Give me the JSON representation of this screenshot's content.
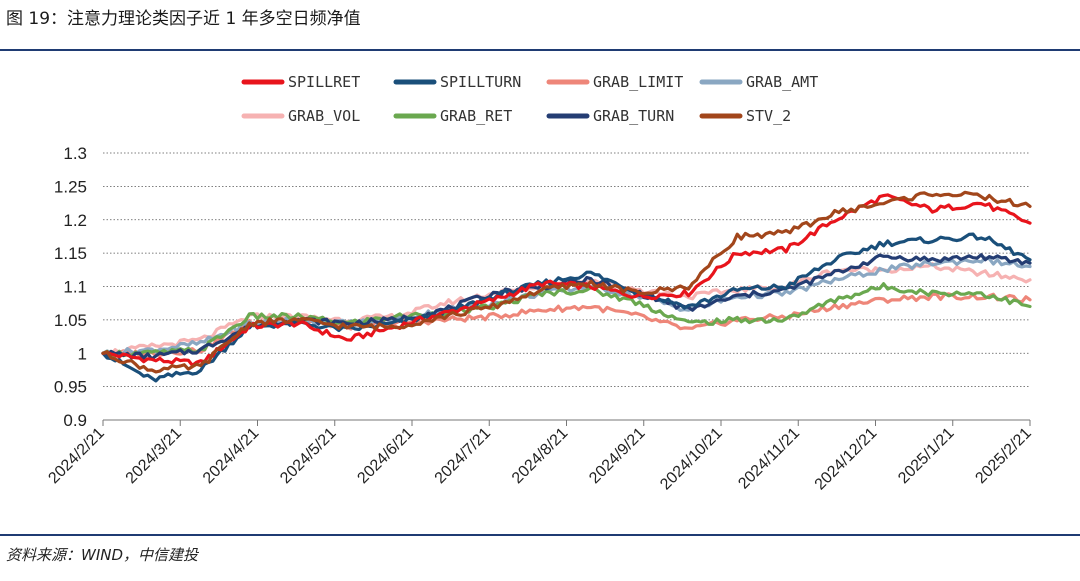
{
  "figure": {
    "title": "图 19：注意力理论类因子近 1 年多空日频净值",
    "source": "资料来源：WIND，中信建投"
  },
  "chart_data": {
    "type": "line",
    "ylim": [
      0.9,
      1.3
    ],
    "yticks": [
      "0.9",
      "0.95",
      "1",
      "1.05",
      "1.1",
      "1.15",
      "1.2",
      "1.25",
      "1.3"
    ],
    "grid": "horizontal-dotted",
    "legend_position": "top",
    "x_ticks": [
      "2024/2/21",
      "2024/3/21",
      "2024/4/21",
      "2024/5/21",
      "2024/6/21",
      "2024/7/21",
      "2024/8/21",
      "2024/9/21",
      "2024/10/21",
      "2024/11/21",
      "2024/12/21",
      "2025/1/21",
      "2025/2/21"
    ],
    "series": [
      {
        "name": "SPILLRET",
        "color": "#e8141c",
        "values": [
          1.0,
          0.99,
          0.985,
          1.04,
          1.045,
          1.02,
          1.04,
          1.06,
          1.08,
          1.105,
          1.1,
          1.085,
          1.09,
          1.15,
          1.155,
          1.2,
          1.235,
          1.215,
          1.225,
          1.195
        ]
      },
      {
        "name": "SPILLTURN",
        "color": "#1a4f7a",
        "values": [
          1.0,
          0.96,
          0.975,
          1.04,
          1.045,
          1.035,
          1.045,
          1.06,
          1.085,
          1.105,
          1.12,
          1.09,
          1.07,
          1.095,
          1.1,
          1.14,
          1.165,
          1.17,
          1.175,
          1.14
        ]
      },
      {
        "name": "GRAB_LIMIT",
        "color": "#ee8679",
        "values": [
          1.0,
          1.0,
          1.005,
          1.045,
          1.05,
          1.04,
          1.045,
          1.05,
          1.055,
          1.065,
          1.07,
          1.055,
          1.035,
          1.05,
          1.055,
          1.07,
          1.08,
          1.085,
          1.085,
          1.08
        ]
      },
      {
        "name": "GRAB_AMT",
        "color": "#8aa7c2",
        "values": [
          1.0,
          1.005,
          1.015,
          1.045,
          1.05,
          1.045,
          1.05,
          1.065,
          1.075,
          1.09,
          1.1,
          1.085,
          1.065,
          1.085,
          1.09,
          1.11,
          1.125,
          1.135,
          1.14,
          1.13
        ]
      },
      {
        "name": "GRAB_VOL",
        "color": "#f6b2b2",
        "values": [
          1.0,
          1.01,
          1.02,
          1.055,
          1.055,
          1.05,
          1.055,
          1.075,
          1.09,
          1.1,
          1.11,
          1.095,
          1.085,
          1.095,
          1.1,
          1.125,
          1.125,
          1.13,
          1.12,
          1.11
        ]
      },
      {
        "name": "GRAB_RET",
        "color": "#6aa84f",
        "values": [
          1.0,
          1.0,
          1.005,
          1.055,
          1.055,
          1.045,
          1.055,
          1.06,
          1.07,
          1.09,
          1.095,
          1.075,
          1.045,
          1.05,
          1.05,
          1.08,
          1.1,
          1.09,
          1.09,
          1.07
        ]
      },
      {
        "name": "GRAB_TURN",
        "color": "#243d73",
        "values": [
          1.0,
          0.995,
          1.005,
          1.04,
          1.05,
          1.045,
          1.05,
          1.065,
          1.09,
          1.1,
          1.11,
          1.09,
          1.065,
          1.085,
          1.095,
          1.12,
          1.145,
          1.14,
          1.145,
          1.135
        ]
      },
      {
        "name": "STV_2",
        "color": "#a2461b",
        "values": [
          1.0,
          0.975,
          0.98,
          1.045,
          1.05,
          1.04,
          1.04,
          1.055,
          1.07,
          1.095,
          1.105,
          1.09,
          1.1,
          1.175,
          1.18,
          1.21,
          1.225,
          1.24,
          1.235,
          1.22
        ]
      }
    ]
  }
}
